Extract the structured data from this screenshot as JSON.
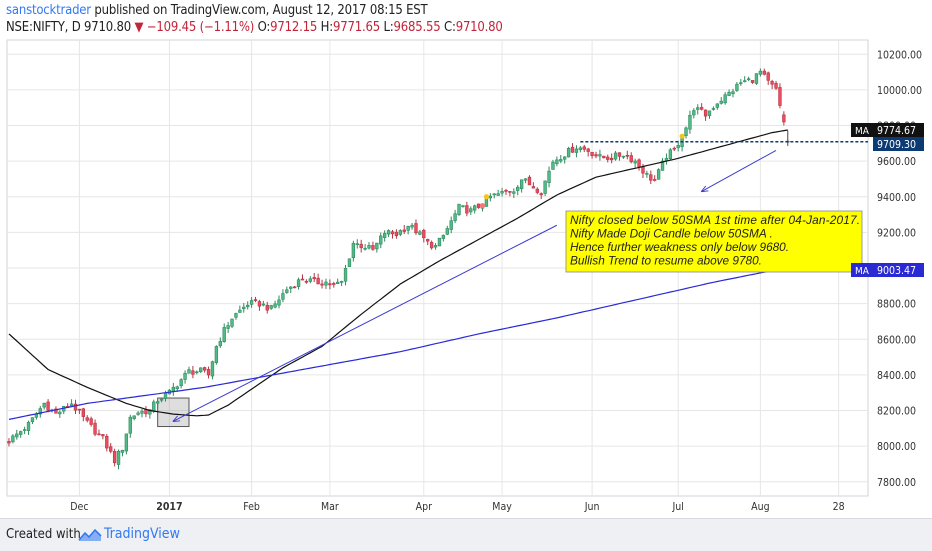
{
  "header": {
    "author": "sanstocktrader",
    "published_text": " published on TradingView.com, August 12, 2017 08:15 EST",
    "symbol": "NSE:NIFTY, D",
    "price": "9710.80",
    "change": "−109.45 (−1.11%)",
    "o_label": "O:",
    "o_value": "9712.15",
    "h_label": "H:",
    "h_value": "9771.65",
    "l_label": "L:",
    "l_value": "9685.55",
    "c_label": "C:",
    "c_value": "9710.80",
    "down_arrow": "▼"
  },
  "footer": {
    "created_with": "Created with",
    "brand": "TradingView",
    "logo_icon": "tradingview-logo-icon"
  },
  "chart_data": {
    "type": "candlestick",
    "ylim": [
      7720,
      10280
    ],
    "y_ticks": [
      7800,
      8000,
      8200,
      8400,
      8600,
      8800,
      9000,
      9200,
      9400,
      9600,
      9800,
      10000,
      10200
    ],
    "y_tick_labels": [
      "7800.00",
      "8000.00",
      "8200.00",
      "8400.00",
      "8600.00",
      "8800.00",
      "9000.00",
      "9200.00",
      "9400.00",
      "9600.00",
      "9800.00",
      "10000.00",
      "10200.00"
    ],
    "x_labels": [
      {
        "label": "Dec",
        "bar": 18
      },
      {
        "label": "2017",
        "bar": 41
      },
      {
        "label": "Feb",
        "bar": 62
      },
      {
        "label": "Mar",
        "bar": 82
      },
      {
        "label": "Apr",
        "bar": 106
      },
      {
        "label": "May",
        "bar": 126
      },
      {
        "label": "Jun",
        "bar": 149
      },
      {
        "label": "Jul",
        "bar": 171
      },
      {
        "label": "Aug",
        "bar": 192
      },
      {
        "label": "28",
        "bar": 212
      }
    ],
    "x_domain_bars": [
      -0.5,
      219.5
    ],
    "bar_count": 200,
    "close_anchors": [
      [
        0,
        8030
      ],
      [
        5,
        8120
      ],
      [
        9,
        8240
      ],
      [
        12,
        8180
      ],
      [
        16,
        8240
      ],
      [
        20,
        8130
      ],
      [
        24,
        8040
      ],
      [
        27,
        7920
      ],
      [
        29,
        7990
      ],
      [
        31,
        8160
      ],
      [
        33,
        8190
      ],
      [
        36,
        8200
      ],
      [
        38,
        8260
      ],
      [
        41,
        8300
      ],
      [
        43,
        8350
      ],
      [
        46,
        8420
      ],
      [
        49,
        8420
      ],
      [
        51,
        8400
      ],
      [
        53,
        8560
      ],
      [
        55,
        8650
      ],
      [
        57,
        8720
      ],
      [
        59,
        8760
      ],
      [
        61,
        8800
      ],
      [
        64,
        8800
      ],
      [
        67,
        8770
      ],
      [
        71,
        8880
      ],
      [
        75,
        8940
      ],
      [
        78,
        8920
      ],
      [
        81,
        8920
      ],
      [
        83,
        8900
      ],
      [
        85,
        8920
      ],
      [
        88,
        9140
      ],
      [
        91,
        9120
      ],
      [
        93,
        9100
      ],
      [
        96,
        9200
      ],
      [
        99,
        9190
      ],
      [
        102,
        9240
      ],
      [
        104,
        9210
      ],
      [
        107,
        9140
      ],
      [
        109,
        9120
      ],
      [
        111,
        9180
      ],
      [
        115,
        9340
      ],
      [
        118,
        9320
      ],
      [
        121,
        9360
      ],
      [
        123,
        9400
      ],
      [
        126,
        9420
      ],
      [
        129,
        9440
      ],
      [
        131,
        9500
      ],
      [
        133,
        9470
      ],
      [
        136,
        9430
      ],
      [
        139,
        9600
      ],
      [
        142,
        9640
      ],
      [
        145,
        9680
      ],
      [
        148,
        9660
      ],
      [
        151,
        9620
      ],
      [
        154,
        9620
      ],
      [
        157,
        9640
      ],
      [
        160,
        9600
      ],
      [
        163,
        9520
      ],
      [
        165,
        9490
      ],
      [
        168,
        9630
      ],
      [
        170,
        9660
      ],
      [
        173,
        9790
      ],
      [
        175,
        9900
      ],
      [
        178,
        9860
      ],
      [
        181,
        9930
      ],
      [
        184,
        9980
      ],
      [
        187,
        10040
      ],
      [
        190,
        10060
      ],
      [
        192,
        10100
      ],
      [
        194,
        10040
      ],
      [
        196,
        10000
      ],
      [
        197,
        9900
      ],
      [
        198,
        9820
      ],
      [
        199,
        9710
      ]
    ],
    "ohlc_last": {
      "open": 9712.15,
      "high": 9771.65,
      "low": 9685.55,
      "close": 9710.8
    },
    "series": [
      {
        "name": "MA",
        "last_value": "9774.67",
        "color": "#111111",
        "anchors": [
          [
            0,
            8630
          ],
          [
            10,
            8430
          ],
          [
            20,
            8330
          ],
          [
            30,
            8240
          ],
          [
            36,
            8200
          ],
          [
            42,
            8180
          ],
          [
            48,
            8170
          ],
          [
            51,
            8175
          ],
          [
            56,
            8230
          ],
          [
            62,
            8320
          ],
          [
            70,
            8440
          ],
          [
            80,
            8560
          ],
          [
            90,
            8740
          ],
          [
            100,
            8910
          ],
          [
            110,
            9040
          ],
          [
            120,
            9160
          ],
          [
            130,
            9280
          ],
          [
            140,
            9410
          ],
          [
            150,
            9510
          ],
          [
            160,
            9560
          ],
          [
            170,
            9610
          ],
          [
            180,
            9670
          ],
          [
            190,
            9730
          ],
          [
            195,
            9760
          ],
          [
            199,
            9775
          ]
        ]
      },
      {
        "name": "MA",
        "last_value": "9003.47",
        "color": "#2a2ad4",
        "anchors": [
          [
            0,
            8150
          ],
          [
            20,
            8240
          ],
          [
            40,
            8300
          ],
          [
            50,
            8330
          ],
          [
            60,
            8370
          ],
          [
            80,
            8450
          ],
          [
            100,
            8530
          ],
          [
            120,
            8630
          ],
          [
            140,
            8720
          ],
          [
            160,
            8820
          ],
          [
            180,
            8920
          ],
          [
            199,
            9003
          ]
        ]
      }
    ],
    "price_label": "9709.30",
    "annotation": {
      "lines": [
        "Nifty closed below 50SMA 1st time after 04-Jan-2017.",
        "Nifty Made Doji Candle below 50SMA .",
        "Hence further weakness only below 9680.",
        "Bullish Trend to resume above 9780."
      ],
      "bg_color": "#ffff00"
    },
    "box": {
      "bar_start": 38,
      "bar_end": 46,
      "price_low": 8110,
      "price_high": 8270
    },
    "trendlines": [
      {
        "from": [
          42,
          8140
        ],
        "to": [
          140,
          9240
        ],
        "color": "#3b3bd4"
      },
      {
        "from": [
          177,
          9430
        ],
        "to": [
          196,
          9660
        ],
        "color": "#3b3bd4"
      }
    ],
    "horizontal_line": {
      "price": 9709,
      "bar_start": 146,
      "color": "#0c3a73"
    },
    "dot_markers": [
      {
        "bar": 122,
        "price": 9400,
        "color": "#f5c518"
      },
      {
        "bar": 121,
        "price": 9350,
        "color": "#f57878"
      },
      {
        "bar": 172,
        "price": 9740,
        "color": "#f5c518"
      }
    ],
    "colors": {
      "up": "#53b987",
      "down": "#eb4d5c",
      "grid": "#e6e6e6"
    }
  }
}
